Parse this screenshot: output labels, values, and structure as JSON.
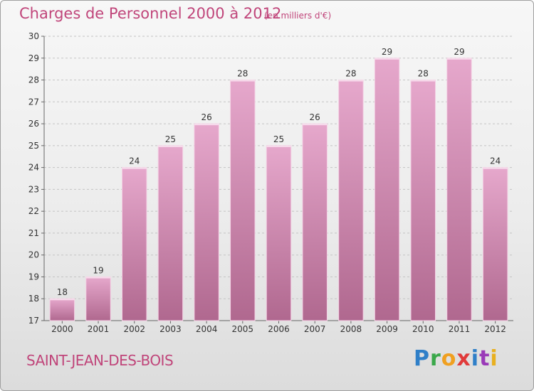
{
  "header": {
    "title": "Charges de Personnel 2000 à 2012",
    "subtitle": "(en milliers d'€)"
  },
  "footer": {
    "commune": "SAINT-JEAN-DES-BOIS",
    "logo_text": "Proxiti"
  },
  "colors": {
    "bar_top": "#e6a8cc",
    "bar_bottom": "#b0688f",
    "accent": "#c0457a"
  },
  "chart_data": {
    "type": "bar",
    "categories": [
      "2000",
      "2001",
      "2002",
      "2003",
      "2004",
      "2005",
      "2006",
      "2007",
      "2008",
      "2009",
      "2010",
      "2011",
      "2012"
    ],
    "values": [
      18,
      19,
      24,
      25,
      26,
      28,
      25,
      26,
      28,
      29,
      28,
      29,
      24
    ],
    "data_labels": [
      "18",
      "19",
      "24",
      "25",
      "26",
      "28",
      "25",
      "26",
      "28",
      "29",
      "28",
      "29",
      "24"
    ],
    "yticks": [
      "17",
      "18",
      "19",
      "20",
      "21",
      "22",
      "23",
      "24",
      "25",
      "26",
      "27",
      "28",
      "29",
      "30"
    ],
    "ylim": [
      17,
      30
    ],
    "grid": true,
    "legend": "none"
  }
}
